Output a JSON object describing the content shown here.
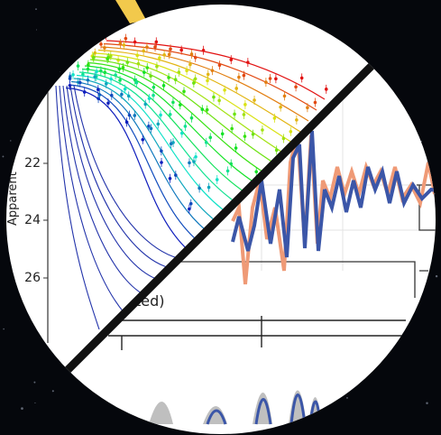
{
  "left_panel": {
    "y_axis_label": "Apparent",
    "y_ticks": [
      "22",
      "24",
      "26"
    ]
  },
  "right_panel": {
    "axis_label_fragment": "ted)"
  }
}
